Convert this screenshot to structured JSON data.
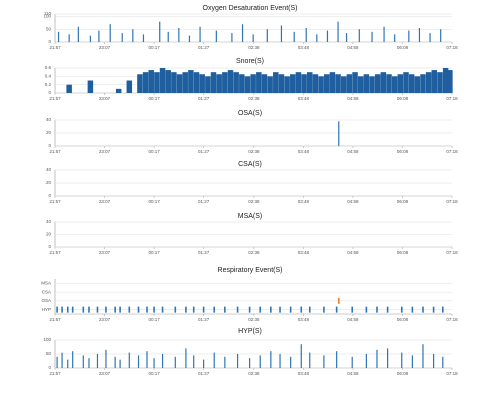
{
  "chart_data": [
    {
      "type": "bar",
      "title": "Oxygen Desaturation Event(S)",
      "color": "#2e75b6",
      "bar_width": 1.2,
      "x": [
        5,
        20,
        33,
        50,
        62,
        78,
        95,
        110,
        125,
        148,
        160,
        175,
        190,
        205,
        228,
        250,
        265,
        280,
        300,
        320,
        338,
        355,
        370,
        385,
        400,
        412,
        430,
        448,
        465,
        480,
        500,
        515,
        530,
        545
      ],
      "values": [
        40,
        30,
        60,
        25,
        45,
        70,
        35,
        50,
        30,
        80,
        40,
        55,
        25,
        60,
        45,
        35,
        70,
        30,
        50,
        65,
        40,
        55,
        30,
        45,
        80,
        35,
        50,
        40,
        60,
        30,
        45,
        55,
        35,
        50
      ],
      "xlim": [
        0,
        561
      ],
      "xticks": [
        {
          "value": 0,
          "label": "21:57"
        },
        {
          "value": 70,
          "label": "23:07"
        },
        {
          "value": 140,
          "label": "00:17"
        },
        {
          "value": 210,
          "label": "01:27"
        },
        {
          "value": 281,
          "label": "02:38"
        },
        {
          "value": 351,
          "label": "03:48"
        },
        {
          "value": 421,
          "label": "04:58"
        },
        {
          "value": 491,
          "label": "06:08"
        },
        {
          "value": 561,
          "label": "07:18"
        }
      ],
      "ylim": [
        0,
        110
      ],
      "yticks": [
        0,
        50,
        100,
        110
      ],
      "grid": true
    },
    {
      "type": "bar",
      "title": "Snore(S)",
      "color": "#1f5fa0",
      "bar_width": 5.5,
      "x": [
        20,
        50,
        90,
        105,
        120,
        128,
        136,
        144,
        152,
        160,
        168,
        176,
        184,
        192,
        200,
        208,
        216,
        224,
        232,
        240,
        248,
        256,
        264,
        272,
        280,
        288,
        296,
        304,
        312,
        320,
        328,
        336,
        344,
        352,
        360,
        368,
        376,
        384,
        392,
        400,
        408,
        416,
        424,
        432,
        440,
        448,
        456,
        464,
        472,
        480,
        488,
        496,
        504,
        512,
        520,
        528,
        536,
        544,
        552,
        558
      ],
      "values": [
        0.2,
        0.3,
        0.1,
        0.3,
        0.45,
        0.5,
        0.55,
        0.5,
        0.6,
        0.55,
        0.5,
        0.45,
        0.5,
        0.55,
        0.5,
        0.45,
        0.4,
        0.5,
        0.45,
        0.5,
        0.55,
        0.5,
        0.45,
        0.4,
        0.45,
        0.5,
        0.45,
        0.4,
        0.5,
        0.45,
        0.4,
        0.45,
        0.5,
        0.45,
        0.5,
        0.45,
        0.4,
        0.45,
        0.5,
        0.45,
        0.4,
        0.45,
        0.5,
        0.4,
        0.45,
        0.4,
        0.45,
        0.5,
        0.45,
        0.4,
        0.45,
        0.5,
        0.45,
        0.4,
        0.45,
        0.5,
        0.55,
        0.5,
        0.6,
        0.55
      ],
      "xlim": [
        0,
        561
      ],
      "xticks": [
        {
          "value": 0,
          "label": "21:57"
        },
        {
          "value": 70,
          "label": "23:07"
        },
        {
          "value": 140,
          "label": "00:17"
        },
        {
          "value": 210,
          "label": "01:27"
        },
        {
          "value": 281,
          "label": "02:38"
        },
        {
          "value": 351,
          "label": "03:48"
        },
        {
          "value": 421,
          "label": "04:58"
        },
        {
          "value": 491,
          "label": "06:08"
        },
        {
          "value": 561,
          "label": "07:18"
        }
      ],
      "ylim": [
        0,
        0.6
      ],
      "yticks": [
        0,
        0.2,
        0.4,
        0.6
      ],
      "grid": true
    },
    {
      "type": "bar",
      "title": "OSA(S)",
      "color": "#2e75b6",
      "bar_width": 1.2,
      "x": [
        401
      ],
      "values": [
        38
      ],
      "xlim": [
        0,
        561
      ],
      "xticks": [
        {
          "value": 0,
          "label": "21:57"
        },
        {
          "value": 70,
          "label": "23:07"
        },
        {
          "value": 140,
          "label": "00:17"
        },
        {
          "value": 210,
          "label": "01:27"
        },
        {
          "value": 281,
          "label": "02:38"
        },
        {
          "value": 351,
          "label": "03:48"
        },
        {
          "value": 421,
          "label": "04:58"
        },
        {
          "value": 491,
          "label": "06:08"
        },
        {
          "value": 561,
          "label": "07:18"
        }
      ],
      "ylim": [
        0,
        40
      ],
      "yticks": [
        0,
        20,
        40
      ],
      "grid": true
    },
    {
      "type": "bar",
      "title": "CSA(S)",
      "color": "#2e75b6",
      "bar_width": 1.2,
      "x": [],
      "values": [],
      "xlim": [
        0,
        561
      ],
      "xticks": [
        {
          "value": 0,
          "label": "21:57"
        },
        {
          "value": 70,
          "label": "23:07"
        },
        {
          "value": 140,
          "label": "00:17"
        },
        {
          "value": 210,
          "label": "01:27"
        },
        {
          "value": 281,
          "label": "02:38"
        },
        {
          "value": 351,
          "label": "03:48"
        },
        {
          "value": 421,
          "label": "04:58"
        },
        {
          "value": 491,
          "label": "06:08"
        },
        {
          "value": 561,
          "label": "07:18"
        }
      ],
      "ylim": [
        0,
        40
      ],
      "yticks": [
        0,
        20,
        40
      ],
      "grid": true
    },
    {
      "type": "bar",
      "title": "MSA(S)",
      "color": "#2e75b6",
      "bar_width": 1.2,
      "x": [],
      "values": [],
      "xlim": [
        0,
        561
      ],
      "xticks": [
        {
          "value": 0,
          "label": "21:57"
        },
        {
          "value": 70,
          "label": "23:07"
        },
        {
          "value": 140,
          "label": "00:17"
        },
        {
          "value": 210,
          "label": "01:27"
        },
        {
          "value": 281,
          "label": "02:38"
        },
        {
          "value": 351,
          "label": "03:48"
        },
        {
          "value": 421,
          "label": "04:58"
        },
        {
          "value": 491,
          "label": "06:08"
        },
        {
          "value": 561,
          "label": "07:18"
        }
      ],
      "ylim": [
        0,
        40
      ],
      "yticks": [
        0,
        20,
        40
      ],
      "grid": true
    },
    {
      "type": "event",
      "title": "Respiratory Event(S)",
      "categories": [
        "HYP",
        "OSA",
        "CSA",
        "MSA"
      ],
      "series": [
        {
          "color": "#2e75b6",
          "x": [
            3,
            10,
            18,
            25,
            40,
            48,
            60,
            72,
            85,
            92,
            105,
            118,
            130,
            140,
            152,
            170,
            185,
            196,
            210,
            225,
            240,
            258,
            275,
            290,
            305,
            318,
            333,
            348,
            360,
            380,
            398,
            420,
            440,
            455,
            470,
            490,
            505,
            520,
            535,
            548
          ]
        },
        {
          "color": "#ed7d31",
          "x": [
            401
          ]
        },
        {
          "color": "#2e75b6",
          "x": []
        },
        {
          "color": "#2e75b6",
          "x": []
        }
      ],
      "xlim": [
        0,
        561
      ],
      "xticks": [
        {
          "value": 0,
          "label": "21:57"
        },
        {
          "value": 70,
          "label": "23:07"
        },
        {
          "value": 140,
          "label": "00:17"
        },
        {
          "value": 210,
          "label": "01:27"
        },
        {
          "value": 281,
          "label": "02:38"
        },
        {
          "value": 351,
          "label": "03:48"
        },
        {
          "value": 421,
          "label": "04:58"
        },
        {
          "value": 491,
          "label": "06:08"
        },
        {
          "value": 561,
          "label": "07:18"
        }
      ],
      "grid": true
    },
    {
      "type": "bar",
      "title": "HYP(S)",
      "color": "#2e75b6",
      "bar_width": 1.2,
      "x": [
        3,
        10,
        18,
        25,
        40,
        48,
        60,
        72,
        85,
        92,
        105,
        118,
        130,
        140,
        152,
        170,
        185,
        196,
        210,
        225,
        240,
        258,
        275,
        290,
        305,
        318,
        333,
        348,
        360,
        380,
        398,
        420,
        440,
        455,
        470,
        490,
        505,
        520,
        535,
        548
      ],
      "values": [
        40,
        55,
        30,
        60,
        45,
        35,
        50,
        65,
        40,
        30,
        55,
        45,
        60,
        35,
        50,
        40,
        70,
        45,
        30,
        55,
        40,
        50,
        35,
        45,
        60,
        50,
        40,
        85,
        55,
        45,
        60,
        40,
        50,
        65,
        70,
        55,
        45,
        85,
        50,
        40
      ],
      "xlim": [
        0,
        561
      ],
      "xticks": [
        {
          "value": 0,
          "label": "21:57"
        },
        {
          "value": 70,
          "label": "23:07"
        },
        {
          "value": 140,
          "label": "00:17"
        },
        {
          "value": 210,
          "label": "01:27"
        },
        {
          "value": 281,
          "label": "02:38"
        },
        {
          "value": 351,
          "label": "03:48"
        },
        {
          "value": 421,
          "label": "04:58"
        },
        {
          "value": 491,
          "label": "06:08"
        },
        {
          "value": 561,
          "label": "07:18"
        }
      ],
      "ylim": [
        0,
        100
      ],
      "yticks": [
        0,
        50,
        100
      ],
      "grid": true
    }
  ]
}
